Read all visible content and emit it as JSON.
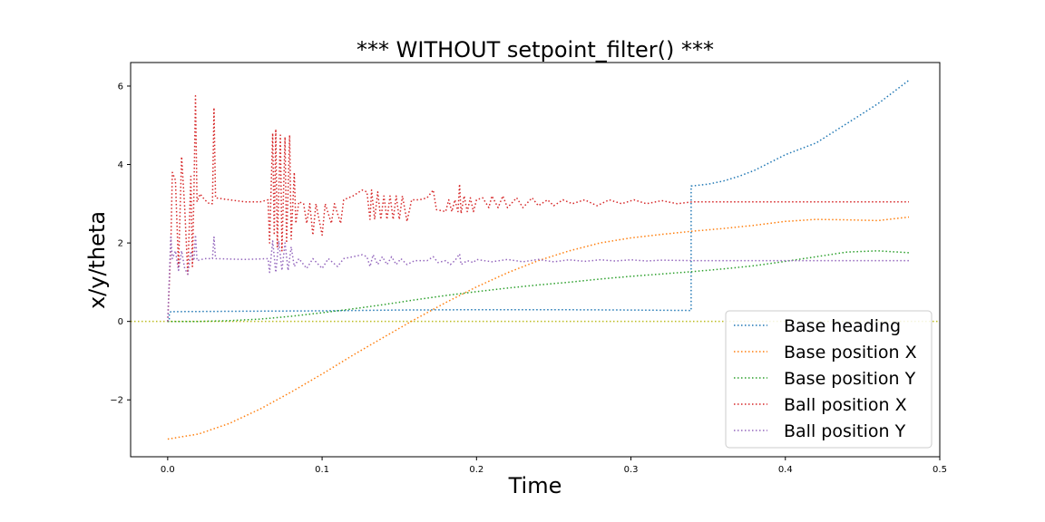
{
  "chart_data": {
    "type": "line",
    "title": "*** WITHOUT setpoint_filter() ***",
    "xlabel": "Time",
    "ylabel": "x/y/theta",
    "xlim": [
      -0.024,
      0.5
    ],
    "ylim": [
      -3.45,
      6.6
    ],
    "x_ticks": [
      0.0,
      0.1,
      0.2,
      0.3,
      0.4,
      0.5
    ],
    "x_tick_labels": [
      "0.0",
      "0.1",
      "0.2",
      "0.3",
      "0.4",
      "0.5"
    ],
    "y_ticks": [
      -2,
      0,
      2,
      4,
      6
    ],
    "y_tick_labels": [
      "−2",
      "0",
      "2",
      "4",
      "6"
    ],
    "grid": false,
    "legend_position": "lower right",
    "line_style": "dotted",
    "reference_line": {
      "y": 0,
      "color": "#bcbd22"
    },
    "series": [
      {
        "name": "Base heading",
        "color": "#1f77b4",
        "points": [
          [
            0.0,
            0.0
          ],
          [
            0.001,
            0.0
          ],
          [
            0.001,
            0.2
          ],
          [
            0.002,
            0.25
          ],
          [
            0.05,
            0.26
          ],
          [
            0.1,
            0.27
          ],
          [
            0.15,
            0.29
          ],
          [
            0.2,
            0.3
          ],
          [
            0.25,
            0.3
          ],
          [
            0.3,
            0.29
          ],
          [
            0.339,
            0.28
          ],
          [
            0.339,
            3.45
          ],
          [
            0.35,
            3.5
          ],
          [
            0.36,
            3.58
          ],
          [
            0.37,
            3.7
          ],
          [
            0.38,
            3.85
          ],
          [
            0.39,
            4.05
          ],
          [
            0.4,
            4.25
          ],
          [
            0.41,
            4.4
          ],
          [
            0.42,
            4.55
          ],
          [
            0.43,
            4.8
          ],
          [
            0.44,
            5.05
          ],
          [
            0.45,
            5.3
          ],
          [
            0.46,
            5.55
          ],
          [
            0.47,
            5.85
          ],
          [
            0.48,
            6.15
          ]
        ]
      },
      {
        "name": "Base position X",
        "color": "#ff7f0e",
        "points": [
          [
            0.0,
            -3.0
          ],
          [
            0.02,
            -2.87
          ],
          [
            0.04,
            -2.6
          ],
          [
            0.06,
            -2.23
          ],
          [
            0.08,
            -1.8
          ],
          [
            0.1,
            -1.34
          ],
          [
            0.12,
            -0.86
          ],
          [
            0.14,
            -0.4
          ],
          [
            0.16,
            0.05
          ],
          [
            0.18,
            0.48
          ],
          [
            0.2,
            0.88
          ],
          [
            0.22,
            1.24
          ],
          [
            0.24,
            1.55
          ],
          [
            0.26,
            1.8
          ],
          [
            0.28,
            2.0
          ],
          [
            0.3,
            2.13
          ],
          [
            0.32,
            2.22
          ],
          [
            0.34,
            2.3
          ],
          [
            0.36,
            2.37
          ],
          [
            0.38,
            2.45
          ],
          [
            0.4,
            2.55
          ],
          [
            0.42,
            2.6
          ],
          [
            0.44,
            2.59
          ],
          [
            0.46,
            2.57
          ],
          [
            0.48,
            2.66
          ]
        ]
      },
      {
        "name": "Base position Y",
        "color": "#2ca02c",
        "points": [
          [
            0.0,
            0.0
          ],
          [
            0.02,
            0.0
          ],
          [
            0.04,
            0.02
          ],
          [
            0.06,
            0.06
          ],
          [
            0.08,
            0.13
          ],
          [
            0.1,
            0.22
          ],
          [
            0.12,
            0.32
          ],
          [
            0.14,
            0.43
          ],
          [
            0.16,
            0.55
          ],
          [
            0.18,
            0.66
          ],
          [
            0.2,
            0.76
          ],
          [
            0.22,
            0.85
          ],
          [
            0.24,
            0.93
          ],
          [
            0.26,
            1.0
          ],
          [
            0.28,
            1.08
          ],
          [
            0.3,
            1.15
          ],
          [
            0.32,
            1.21
          ],
          [
            0.34,
            1.27
          ],
          [
            0.36,
            1.34
          ],
          [
            0.38,
            1.42
          ],
          [
            0.4,
            1.53
          ],
          [
            0.42,
            1.65
          ],
          [
            0.44,
            1.77
          ],
          [
            0.46,
            1.8
          ],
          [
            0.48,
            1.75
          ]
        ]
      },
      {
        "name": "Ball position X",
        "color": "#d62728",
        "points": [
          [
            0.0,
            0.0
          ],
          [
            0.002,
            1.9
          ],
          [
            0.003,
            3.8
          ],
          [
            0.005,
            3.6
          ],
          [
            0.007,
            1.4
          ],
          [
            0.009,
            4.2
          ],
          [
            0.011,
            2.9
          ],
          [
            0.013,
            1.2
          ],
          [
            0.015,
            3.7
          ],
          [
            0.016,
            1.4
          ],
          [
            0.017,
            3.3
          ],
          [
            0.018,
            5.75
          ],
          [
            0.019,
            3.05
          ],
          [
            0.021,
            3.25
          ],
          [
            0.024,
            3.1
          ],
          [
            0.027,
            3.0
          ],
          [
            0.029,
            3.0
          ],
          [
            0.03,
            5.45
          ],
          [
            0.031,
            3.15
          ],
          [
            0.04,
            3.1
          ],
          [
            0.05,
            3.05
          ],
          [
            0.06,
            3.05
          ],
          [
            0.065,
            3.1
          ],
          [
            0.066,
            2.0
          ],
          [
            0.068,
            4.8
          ],
          [
            0.069,
            2.2
          ],
          [
            0.07,
            4.9
          ],
          [
            0.071,
            1.9
          ],
          [
            0.073,
            4.75
          ],
          [
            0.074,
            1.8
          ],
          [
            0.076,
            4.7
          ],
          [
            0.077,
            2.0
          ],
          [
            0.079,
            4.75
          ],
          [
            0.08,
            2.1
          ],
          [
            0.082,
            3.8
          ],
          [
            0.083,
            2.5
          ],
          [
            0.085,
            3.05
          ],
          [
            0.088,
            3.0
          ],
          [
            0.09,
            2.5
          ],
          [
            0.092,
            3.0
          ],
          [
            0.094,
            2.2
          ],
          [
            0.096,
            3.0
          ],
          [
            0.1,
            2.2
          ],
          [
            0.102,
            3.0
          ],
          [
            0.106,
            2.5
          ],
          [
            0.108,
            3.0
          ],
          [
            0.112,
            2.5
          ],
          [
            0.114,
            3.1
          ],
          [
            0.12,
            3.2
          ],
          [
            0.126,
            3.35
          ],
          [
            0.129,
            3.3
          ],
          [
            0.131,
            2.6
          ],
          [
            0.132,
            3.35
          ],
          [
            0.134,
            2.6
          ],
          [
            0.136,
            3.3
          ],
          [
            0.138,
            2.6
          ],
          [
            0.14,
            3.2
          ],
          [
            0.142,
            2.6
          ],
          [
            0.144,
            3.2
          ],
          [
            0.146,
            2.6
          ],
          [
            0.148,
            3.2
          ],
          [
            0.15,
            2.6
          ],
          [
            0.152,
            3.2
          ],
          [
            0.155,
            2.55
          ],
          [
            0.158,
            3.1
          ],
          [
            0.163,
            3.1
          ],
          [
            0.168,
            3.15
          ],
          [
            0.172,
            3.35
          ],
          [
            0.174,
            2.85
          ],
          [
            0.18,
            2.8
          ],
          [
            0.182,
            3.1
          ],
          [
            0.184,
            2.8
          ],
          [
            0.186,
            3.1
          ],
          [
            0.188,
            2.8
          ],
          [
            0.189,
            3.5
          ],
          [
            0.19,
            2.75
          ],
          [
            0.192,
            3.2
          ],
          [
            0.194,
            2.8
          ],
          [
            0.196,
            3.15
          ],
          [
            0.198,
            2.8
          ],
          [
            0.2,
            3.1
          ],
          [
            0.204,
            3.15
          ],
          [
            0.208,
            2.9
          ],
          [
            0.21,
            3.2
          ],
          [
            0.214,
            2.9
          ],
          [
            0.217,
            3.2
          ],
          [
            0.22,
            2.9
          ],
          [
            0.226,
            3.15
          ],
          [
            0.23,
            2.9
          ],
          [
            0.236,
            3.15
          ],
          [
            0.24,
            2.95
          ],
          [
            0.246,
            3.1
          ],
          [
            0.25,
            2.95
          ],
          [
            0.256,
            3.1
          ],
          [
            0.262,
            3.0
          ],
          [
            0.27,
            3.1
          ],
          [
            0.278,
            2.95
          ],
          [
            0.286,
            3.1
          ],
          [
            0.294,
            3.0
          ],
          [
            0.302,
            3.1
          ],
          [
            0.31,
            3.0
          ],
          [
            0.32,
            3.08
          ],
          [
            0.33,
            3.0
          ],
          [
            0.34,
            3.05
          ],
          [
            0.48,
            3.05
          ]
        ]
      },
      {
        "name": "Ball position Y",
        "color": "#9467bd",
        "points": [
          [
            0.0,
            0.0
          ],
          [
            0.002,
            2.15
          ],
          [
            0.003,
            1.6
          ],
          [
            0.005,
            1.8
          ],
          [
            0.007,
            1.3
          ],
          [
            0.009,
            1.8
          ],
          [
            0.011,
            1.35
          ],
          [
            0.013,
            1.2
          ],
          [
            0.015,
            1.75
          ],
          [
            0.017,
            1.55
          ],
          [
            0.018,
            2.2
          ],
          [
            0.019,
            1.55
          ],
          [
            0.024,
            1.6
          ],
          [
            0.029,
            1.6
          ],
          [
            0.03,
            2.15
          ],
          [
            0.031,
            1.6
          ],
          [
            0.05,
            1.58
          ],
          [
            0.065,
            1.6
          ],
          [
            0.066,
            1.25
          ],
          [
            0.068,
            2.05
          ],
          [
            0.07,
            1.25
          ],
          [
            0.072,
            2.05
          ],
          [
            0.074,
            1.3
          ],
          [
            0.076,
            2.0
          ],
          [
            0.078,
            1.3
          ],
          [
            0.08,
            1.9
          ],
          [
            0.082,
            1.4
          ],
          [
            0.085,
            1.6
          ],
          [
            0.09,
            1.35
          ],
          [
            0.094,
            1.6
          ],
          [
            0.1,
            1.35
          ],
          [
            0.104,
            1.6
          ],
          [
            0.11,
            1.4
          ],
          [
            0.114,
            1.6
          ],
          [
            0.12,
            1.65
          ],
          [
            0.126,
            1.7
          ],
          [
            0.129,
            1.65
          ],
          [
            0.131,
            1.4
          ],
          [
            0.133,
            1.7
          ],
          [
            0.136,
            1.45
          ],
          [
            0.139,
            1.65
          ],
          [
            0.142,
            1.45
          ],
          [
            0.145,
            1.65
          ],
          [
            0.148,
            1.45
          ],
          [
            0.151,
            1.6
          ],
          [
            0.155,
            1.45
          ],
          [
            0.16,
            1.55
          ],
          [
            0.168,
            1.55
          ],
          [
            0.172,
            1.65
          ],
          [
            0.175,
            1.5
          ],
          [
            0.18,
            1.55
          ],
          [
            0.183,
            1.45
          ],
          [
            0.186,
            1.55
          ],
          [
            0.189,
            1.72
          ],
          [
            0.19,
            1.45
          ],
          [
            0.194,
            1.55
          ],
          [
            0.198,
            1.5
          ],
          [
            0.2,
            1.58
          ],
          [
            0.21,
            1.52
          ],
          [
            0.22,
            1.58
          ],
          [
            0.23,
            1.52
          ],
          [
            0.24,
            1.58
          ],
          [
            0.25,
            1.52
          ],
          [
            0.26,
            1.57
          ],
          [
            0.27,
            1.53
          ],
          [
            0.28,
            1.57
          ],
          [
            0.29,
            1.54
          ],
          [
            0.3,
            1.57
          ],
          [
            0.31,
            1.54
          ],
          [
            0.32,
            1.56
          ],
          [
            0.34,
            1.55
          ],
          [
            0.48,
            1.55
          ]
        ]
      }
    ]
  }
}
